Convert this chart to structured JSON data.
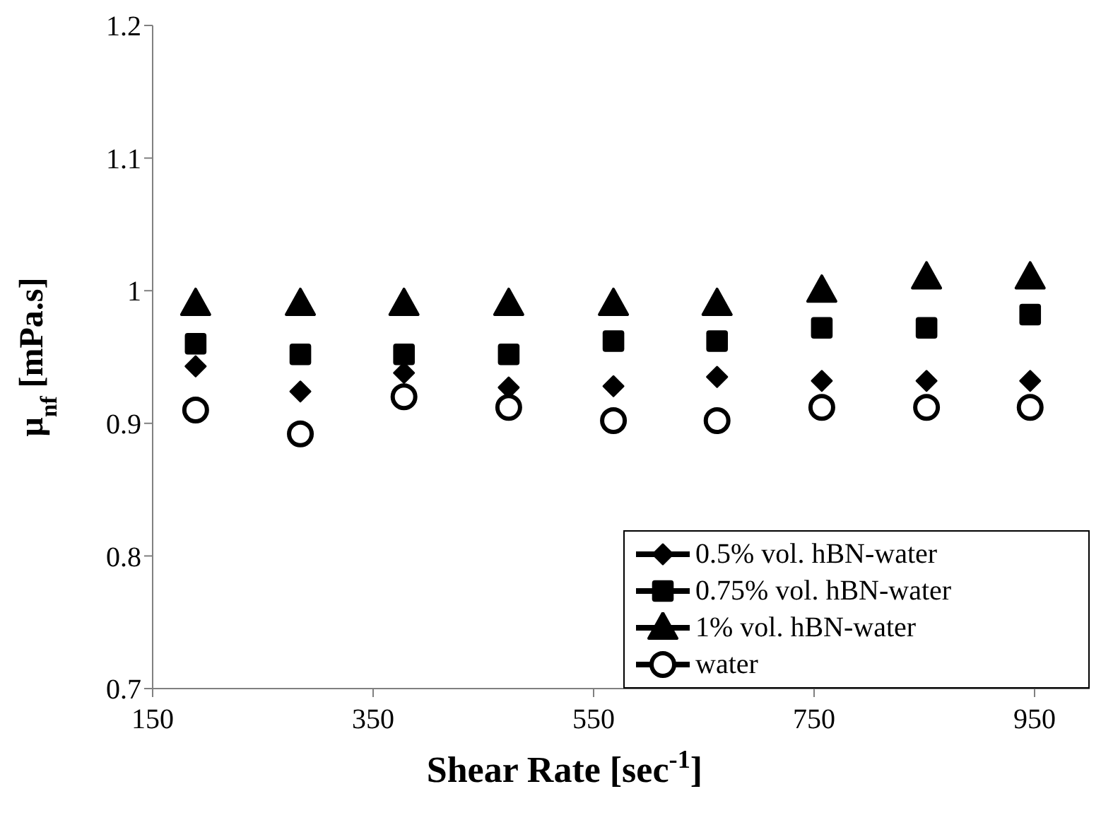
{
  "chart_data": {
    "type": "scatter",
    "xlabel": "Shear Rate [sec$^{-1}$]",
    "ylabel": "μ$_{nf}$ [mPa.s]",
    "x": [
      189,
      284,
      378,
      473,
      568,
      662,
      757,
      852,
      946
    ],
    "xlim": [
      150,
      1000
    ],
    "xticks": [
      150,
      350,
      550,
      750,
      950
    ],
    "ylim": [
      0.7,
      1.2
    ],
    "yticks": [
      0.7,
      0.8,
      0.9,
      1,
      1.1,
      1.2
    ],
    "legend": "bottom right",
    "grid": false,
    "series": [
      {
        "name": "0.5% vol. hBN-water",
        "color": "#000000",
        "marker": "diamond",
        "values": [
          0.943,
          0.924,
          0.938,
          0.927,
          0.928,
          0.935,
          0.932,
          0.932,
          0.932
        ]
      },
      {
        "name": "0.75% vol. hBN-water",
        "color": "#000000",
        "marker": "square",
        "values": [
          0.96,
          0.952,
          0.952,
          0.952,
          0.962,
          0.962,
          0.972,
          0.972,
          0.982
        ]
      },
      {
        "name": "1% vol. hBN-water",
        "color": "#000000",
        "marker": "triangle",
        "values": [
          0.99,
          0.99,
          0.99,
          0.99,
          0.99,
          0.99,
          1.0,
          1.01,
          1.01
        ]
      },
      {
        "name": "water",
        "color": "#000000",
        "marker": "circle",
        "values": [
          0.91,
          0.892,
          0.92,
          0.912,
          0.902,
          0.902,
          0.912,
          0.912,
          0.912
        ]
      }
    ]
  }
}
